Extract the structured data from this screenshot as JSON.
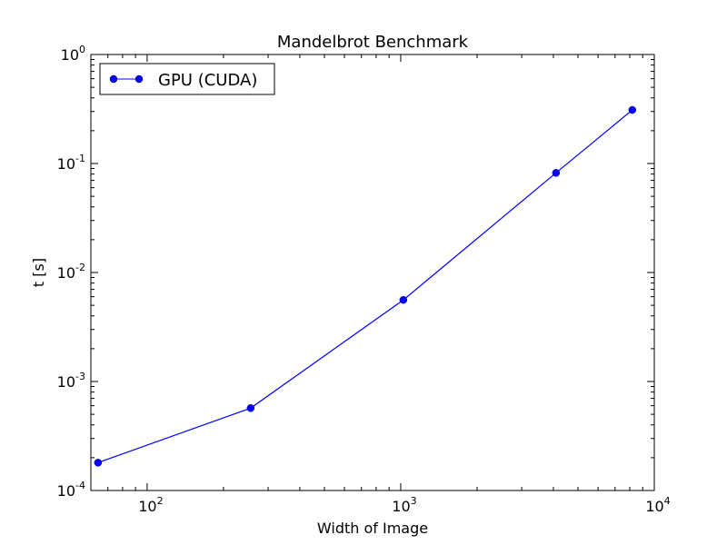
{
  "chart_data": {
    "type": "line",
    "title": "Mandelbrot Benchmark",
    "xlabel": "Width of Image",
    "ylabel": "t [s]",
    "xscale": "log",
    "yscale": "log",
    "xlim": [
      60,
      10000
    ],
    "ylim": [
      0.0001,
      1
    ],
    "grid": false,
    "legend_position": "top-left",
    "x_ticks": [
      {
        "value": 100,
        "base": "10",
        "exp": "2"
      },
      {
        "value": 1000,
        "base": "10",
        "exp": "3"
      },
      {
        "value": 10000,
        "base": "10",
        "exp": "4"
      }
    ],
    "y_ticks": [
      {
        "value": 0.0001,
        "base": "10",
        "exp": "-4"
      },
      {
        "value": 0.001,
        "base": "10",
        "exp": "-3"
      },
      {
        "value": 0.01,
        "base": "10",
        "exp": "-2"
      },
      {
        "value": 0.1,
        "base": "10",
        "exp": "-1"
      },
      {
        "value": 1,
        "base": "10",
        "exp": "0"
      }
    ],
    "series": [
      {
        "name": "GPU (CUDA)",
        "color": "#0000ff",
        "marker": "circle",
        "x": [
          64,
          256,
          1024,
          4096,
          8192
        ],
        "y": [
          0.00018,
          0.00057,
          0.0056,
          0.082,
          0.31
        ]
      }
    ]
  }
}
